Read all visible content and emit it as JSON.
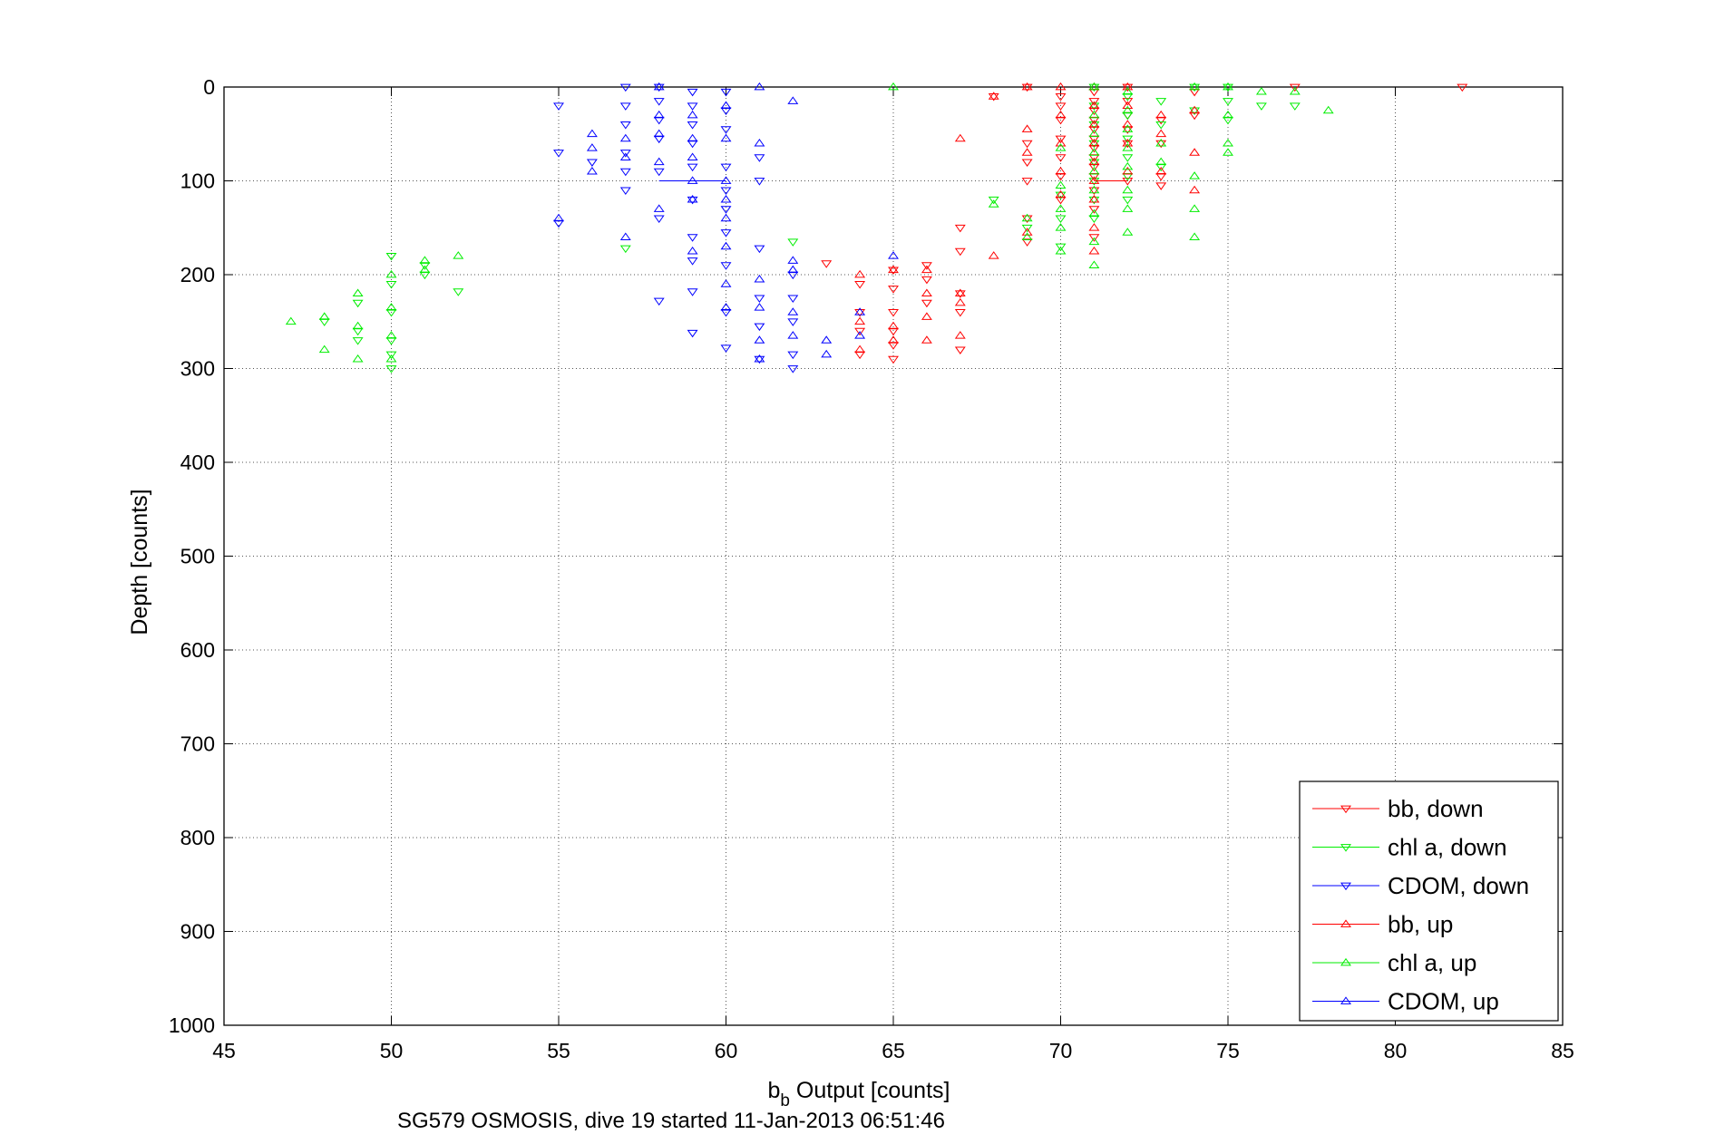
{
  "chart_data": {
    "type": "scatter",
    "xlabel_main": "b",
    "xlabel_sub": "b",
    "xlabel_rest": " Output [counts]",
    "ylabel": "Depth [counts]",
    "caption": "SG579 OSMOSIS, dive 19 started 11-Jan-2013 06:51:46",
    "xlim": [
      45,
      85
    ],
    "ylim": [
      0,
      1000
    ],
    "y_reversed": true,
    "grid": true,
    "legend_position": "bottom-right",
    "xticks": [
      "45",
      "50",
      "55",
      "60",
      "65",
      "70",
      "75",
      "80",
      "85"
    ],
    "yticks": [
      "0",
      "100",
      "200",
      "300",
      "400",
      "500",
      "600",
      "700",
      "800",
      "900",
      "1000"
    ],
    "series": [
      {
        "name": "bb, down",
        "color": "#ff0000",
        "marker": "triangle-down",
        "points": [
          [
            67,
            150
          ],
          [
            67,
            175
          ],
          [
            68,
            10
          ],
          [
            69,
            0
          ],
          [
            69,
            60
          ],
          [
            69,
            80
          ],
          [
            69,
            100
          ],
          [
            69,
            140
          ],
          [
            69,
            165
          ],
          [
            70,
            10
          ],
          [
            70,
            20
          ],
          [
            70,
            35
          ],
          [
            70,
            55
          ],
          [
            70,
            75
          ],
          [
            70,
            95
          ],
          [
            70,
            120
          ],
          [
            71,
            5
          ],
          [
            71,
            15
          ],
          [
            71,
            25
          ],
          [
            71,
            35
          ],
          [
            71,
            45
          ],
          [
            71,
            55
          ],
          [
            71,
            65
          ],
          [
            71,
            75
          ],
          [
            71,
            85
          ],
          [
            71,
            95
          ],
          [
            71,
            110
          ],
          [
            71,
            130
          ],
          [
            71,
            160
          ],
          [
            72,
            0
          ],
          [
            72,
            15
          ],
          [
            72,
            30
          ],
          [
            72,
            45
          ],
          [
            72,
            60
          ],
          [
            72,
            100
          ],
          [
            73,
            35
          ],
          [
            73,
            60
          ],
          [
            73,
            95
          ],
          [
            73,
            105
          ],
          [
            74,
            5
          ],
          [
            74,
            30
          ],
          [
            82,
            0
          ],
          [
            77,
            0
          ],
          [
            63,
            188
          ],
          [
            64,
            210
          ],
          [
            64,
            240
          ],
          [
            64,
            260
          ],
          [
            64,
            285
          ],
          [
            65,
            195
          ],
          [
            65,
            215
          ],
          [
            65,
            240
          ],
          [
            65,
            260
          ],
          [
            65,
            275
          ],
          [
            65,
            290
          ],
          [
            66,
            190
          ],
          [
            66,
            205
          ],
          [
            66,
            230
          ],
          [
            67,
            220
          ],
          [
            67,
            240
          ],
          [
            67,
            280
          ]
        ]
      },
      {
        "name": "chl a, down",
        "color": "#00ee00",
        "marker": "triangle-down",
        "points": [
          [
            48,
            250
          ],
          [
            49,
            230
          ],
          [
            49,
            260
          ],
          [
            49,
            270
          ],
          [
            50,
            180
          ],
          [
            50,
            210
          ],
          [
            50,
            240
          ],
          [
            50,
            270
          ],
          [
            50,
            285
          ],
          [
            50,
            300
          ],
          [
            51,
            190
          ],
          [
            51,
            200
          ],
          [
            52,
            218
          ],
          [
            57,
            172
          ],
          [
            62,
            165
          ],
          [
            68,
            120
          ],
          [
            69,
            150
          ],
          [
            70,
            115
          ],
          [
            70,
            140
          ],
          [
            70,
            170
          ],
          [
            71,
            0
          ],
          [
            71,
            20
          ],
          [
            71,
            40
          ],
          [
            71,
            60
          ],
          [
            71,
            80
          ],
          [
            71,
            100
          ],
          [
            71,
            120
          ],
          [
            71,
            140
          ],
          [
            72,
            10
          ],
          [
            72,
            30
          ],
          [
            72,
            55
          ],
          [
            72,
            75
          ],
          [
            72,
            95
          ],
          [
            72,
            120
          ],
          [
            73,
            15
          ],
          [
            73,
            40
          ],
          [
            73,
            85
          ],
          [
            74,
            0
          ],
          [
            74,
            25
          ],
          [
            75,
            0
          ],
          [
            75,
            15
          ],
          [
            75,
            35
          ],
          [
            76,
            20
          ],
          [
            77,
            20
          ]
        ]
      },
      {
        "name": "CDOM, down",
        "color": "#0000ff",
        "marker": "triangle-down",
        "points": [
          [
            55,
            20
          ],
          [
            55,
            70
          ],
          [
            55,
            145
          ],
          [
            56,
            80
          ],
          [
            57,
            0
          ],
          [
            57,
            20
          ],
          [
            57,
            40
          ],
          [
            57,
            70
          ],
          [
            57,
            90
          ],
          [
            57,
            110
          ],
          [
            58,
            0
          ],
          [
            58,
            15
          ],
          [
            58,
            35
          ],
          [
            58,
            55
          ],
          [
            58,
            90
          ],
          [
            58,
            140
          ],
          [
            58,
            228
          ],
          [
            59,
            5
          ],
          [
            59,
            20
          ],
          [
            59,
            40
          ],
          [
            59,
            60
          ],
          [
            59,
            85
          ],
          [
            59,
            120
          ],
          [
            59,
            160
          ],
          [
            59,
            185
          ],
          [
            59,
            218
          ],
          [
            59,
            262
          ],
          [
            60,
            5
          ],
          [
            60,
            25
          ],
          [
            60,
            45
          ],
          [
            60,
            85
          ],
          [
            60,
            110
          ],
          [
            60,
            130
          ],
          [
            60,
            155
          ],
          [
            60,
            190
          ],
          [
            60,
            240
          ],
          [
            60,
            278
          ],
          [
            61,
            75
          ],
          [
            61,
            100
          ],
          [
            61,
            172
          ],
          [
            61,
            225
          ],
          [
            61,
            255
          ],
          [
            61,
            290
          ],
          [
            62,
            200
          ],
          [
            62,
            225
          ],
          [
            62,
            250
          ],
          [
            62,
            285
          ],
          [
            62,
            300
          ]
        ]
      },
      {
        "name": "bb, up",
        "color": "#ff0000",
        "marker": "triangle-up",
        "points": [
          [
            67,
            55
          ],
          [
            68,
            10
          ],
          [
            68,
            180
          ],
          [
            69,
            0
          ],
          [
            69,
            45
          ],
          [
            69,
            70
          ],
          [
            69,
            155
          ],
          [
            70,
            0
          ],
          [
            70,
            30
          ],
          [
            70,
            60
          ],
          [
            70,
            90
          ],
          [
            70,
            115
          ],
          [
            71,
            0
          ],
          [
            71,
            20
          ],
          [
            71,
            40
          ],
          [
            71,
            60
          ],
          [
            71,
            80
          ],
          [
            71,
            100
          ],
          [
            71,
            120
          ],
          [
            71,
            150
          ],
          [
            71,
            175
          ],
          [
            72,
            0
          ],
          [
            72,
            20
          ],
          [
            72,
            40
          ],
          [
            72,
            60
          ],
          [
            72,
            90
          ],
          [
            73,
            30
          ],
          [
            73,
            50
          ],
          [
            73,
            90
          ],
          [
            74,
            25
          ],
          [
            74,
            70
          ],
          [
            74,
            110
          ],
          [
            64,
            200
          ],
          [
            64,
            250
          ],
          [
            64,
            280
          ],
          [
            65,
            195
          ],
          [
            65,
            255
          ],
          [
            65,
            270
          ],
          [
            66,
            195
          ],
          [
            66,
            220
          ],
          [
            66,
            245
          ],
          [
            66,
            270
          ],
          [
            67,
            220
          ],
          [
            67,
            230
          ],
          [
            67,
            265
          ]
        ]
      },
      {
        "name": "chl a, up",
        "color": "#00ee00",
        "marker": "triangle-up",
        "points": [
          [
            47,
            250
          ],
          [
            48,
            245
          ],
          [
            48,
            280
          ],
          [
            49,
            220
          ],
          [
            49,
            255
          ],
          [
            49,
            290
          ],
          [
            50,
            200
          ],
          [
            50,
            235
          ],
          [
            50,
            265
          ],
          [
            50,
            290
          ],
          [
            51,
            185
          ],
          [
            51,
            195
          ],
          [
            52,
            180
          ],
          [
            65,
            0
          ],
          [
            68,
            125
          ],
          [
            69,
            140
          ],
          [
            69,
            160
          ],
          [
            70,
            65
          ],
          [
            70,
            105
          ],
          [
            70,
            130
          ],
          [
            70,
            150
          ],
          [
            70,
            175
          ],
          [
            71,
            0
          ],
          [
            71,
            30
          ],
          [
            71,
            50
          ],
          [
            71,
            70
          ],
          [
            71,
            90
          ],
          [
            71,
            110
          ],
          [
            71,
            135
          ],
          [
            71,
            165
          ],
          [
            71,
            190
          ],
          [
            72,
            5
          ],
          [
            72,
            25
          ],
          [
            72,
            45
          ],
          [
            72,
            65
          ],
          [
            72,
            85
          ],
          [
            72,
            110
          ],
          [
            72,
            130
          ],
          [
            72,
            155
          ],
          [
            73,
            60
          ],
          [
            73,
            80
          ],
          [
            74,
            0
          ],
          [
            74,
            95
          ],
          [
            74,
            130
          ],
          [
            74,
            160
          ],
          [
            75,
            0
          ],
          [
            75,
            30
          ],
          [
            75,
            60
          ],
          [
            75,
            70
          ],
          [
            76,
            5
          ],
          [
            77,
            5
          ],
          [
            78,
            25
          ]
        ]
      },
      {
        "name": "CDOM, up",
        "color": "#0000ff",
        "marker": "triangle-up",
        "points": [
          [
            55,
            140
          ],
          [
            56,
            50
          ],
          [
            56,
            65
          ],
          [
            56,
            90
          ],
          [
            57,
            55
          ],
          [
            57,
            75
          ],
          [
            57,
            160
          ],
          [
            58,
            0
          ],
          [
            58,
            30
          ],
          [
            58,
            50
          ],
          [
            58,
            80
          ],
          [
            58,
            130
          ],
          [
            59,
            30
          ],
          [
            59,
            55
          ],
          [
            59,
            75
          ],
          [
            59,
            100
          ],
          [
            59,
            120
          ],
          [
            59,
            175
          ],
          [
            60,
            20
          ],
          [
            60,
            55
          ],
          [
            60,
            100
          ],
          [
            60,
            120
          ],
          [
            60,
            140
          ],
          [
            60,
            170
          ],
          [
            60,
            210
          ],
          [
            60,
            235
          ],
          [
            61,
            0
          ],
          [
            61,
            60
          ],
          [
            61,
            205
          ],
          [
            61,
            235
          ],
          [
            61,
            270
          ],
          [
            61,
            290
          ],
          [
            62,
            15
          ],
          [
            62,
            185
          ],
          [
            62,
            195
          ],
          [
            62,
            240
          ],
          [
            62,
            265
          ],
          [
            63,
            270
          ],
          [
            63,
            285
          ],
          [
            64,
            240
          ],
          [
            64,
            265
          ],
          [
            65,
            180
          ]
        ]
      }
    ],
    "segments": [
      {
        "color": "#0000ff",
        "from": [
          58,
          100
        ],
        "to": [
          60,
          100
        ]
      },
      {
        "color": "#ff0000",
        "from": [
          71,
          100
        ],
        "to": [
          72,
          100
        ]
      }
    ]
  }
}
